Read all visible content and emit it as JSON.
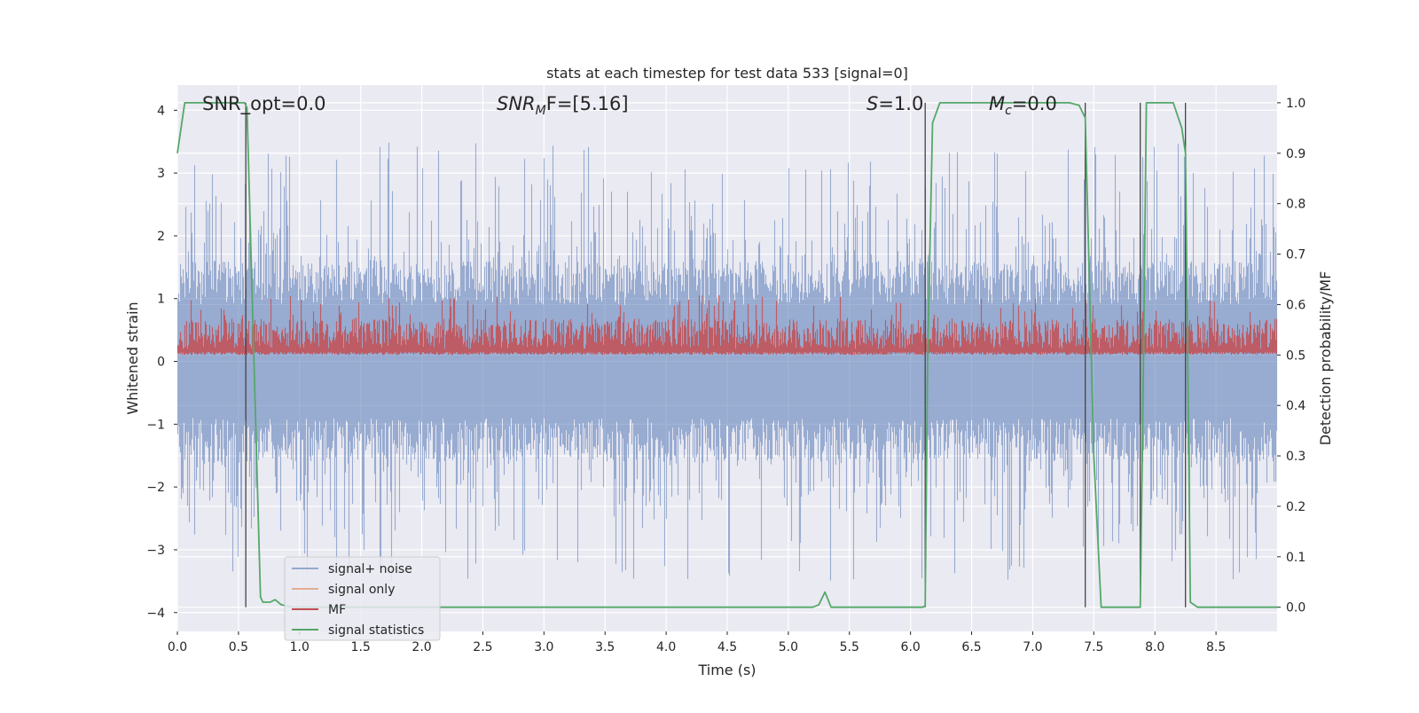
{
  "chart_data": {
    "type": "line",
    "title": "stats at each timestep for test data 533 [signal=0]",
    "xlabel": "Time (s)",
    "ylabel": "Whitened strain",
    "y2label": "Detection probability/MF",
    "xlim": [
      0.0,
      9.0
    ],
    "ylim": [
      -4.3,
      4.4
    ],
    "y2lim": [
      -0.048,
      1.035
    ],
    "xticks": [
      "0.0",
      "0.5",
      "1.0",
      "1.5",
      "2.0",
      "2.5",
      "3.0",
      "3.5",
      "4.0",
      "4.5",
      "5.0",
      "5.5",
      "6.0",
      "6.5",
      "7.0",
      "7.5",
      "8.0",
      "8.5"
    ],
    "yticks": [
      "4",
      "3",
      "2",
      "1",
      "0",
      "−1",
      "−2",
      "−3",
      "−4"
    ],
    "y2ticks": [
      "1.0",
      "0.9",
      "0.8",
      "0.7",
      "0.6",
      "0.5",
      "0.4",
      "0.3",
      "0.2",
      "0.1",
      "0.0"
    ],
    "grid": true,
    "legend_position": "lower-left",
    "annotations": {
      "snr_opt": "SNR_opt=0.0",
      "snr_mf_base": "SNR",
      "snr_mf_sub": "M",
      "snr_mf_rest": "F=[5.16]",
      "s_label": "S",
      "s_rest": "=1.0",
      "mc_base": "M",
      "mc_sub": "c",
      "mc_rest": "=0.0"
    },
    "series": [
      {
        "name": "signal+ noise",
        "color": "#4c72b0",
        "alpha": 0.5,
        "description_values": "whitened strain noise, roughly within ±3.5"
      },
      {
        "name": "signal only",
        "color": "#dd8452",
        "values": []
      },
      {
        "name": "MF",
        "color": "#c44e52",
        "baseline": 0.5,
        "typical_range": [
          0.5,
          0.62
        ]
      },
      {
        "name": "signal statistics",
        "color": "#55a868",
        "x": [
          0.0,
          0.06,
          0.1,
          0.55,
          0.57,
          0.68,
          0.7,
          0.76,
          0.8,
          0.85,
          0.95,
          5.2,
          5.25,
          5.3,
          5.35,
          6.1,
          6.12,
          6.14,
          6.18,
          6.24,
          7.3,
          7.38,
          7.43,
          7.5,
          7.56,
          7.88,
          7.9,
          7.93,
          8.15,
          8.22,
          8.25,
          8.29,
          8.35,
          9.0
        ],
        "values": [
          0.9,
          1.0,
          1.0,
          1.0,
          0.99,
          0.02,
          0.01,
          0.01,
          0.015,
          0.005,
          0.0,
          0.0,
          0.005,
          0.03,
          0.0,
          0.0,
          0.003,
          0.5,
          0.96,
          1.0,
          1.0,
          0.995,
          0.97,
          0.3,
          0.0,
          0.0,
          0.35,
          1.0,
          1.0,
          0.95,
          0.9,
          0.01,
          0.0,
          0.0
        ]
      }
    ],
    "detection_markers_x": [
      0.56,
      6.12,
      7.43,
      7.88,
      8.25
    ]
  }
}
